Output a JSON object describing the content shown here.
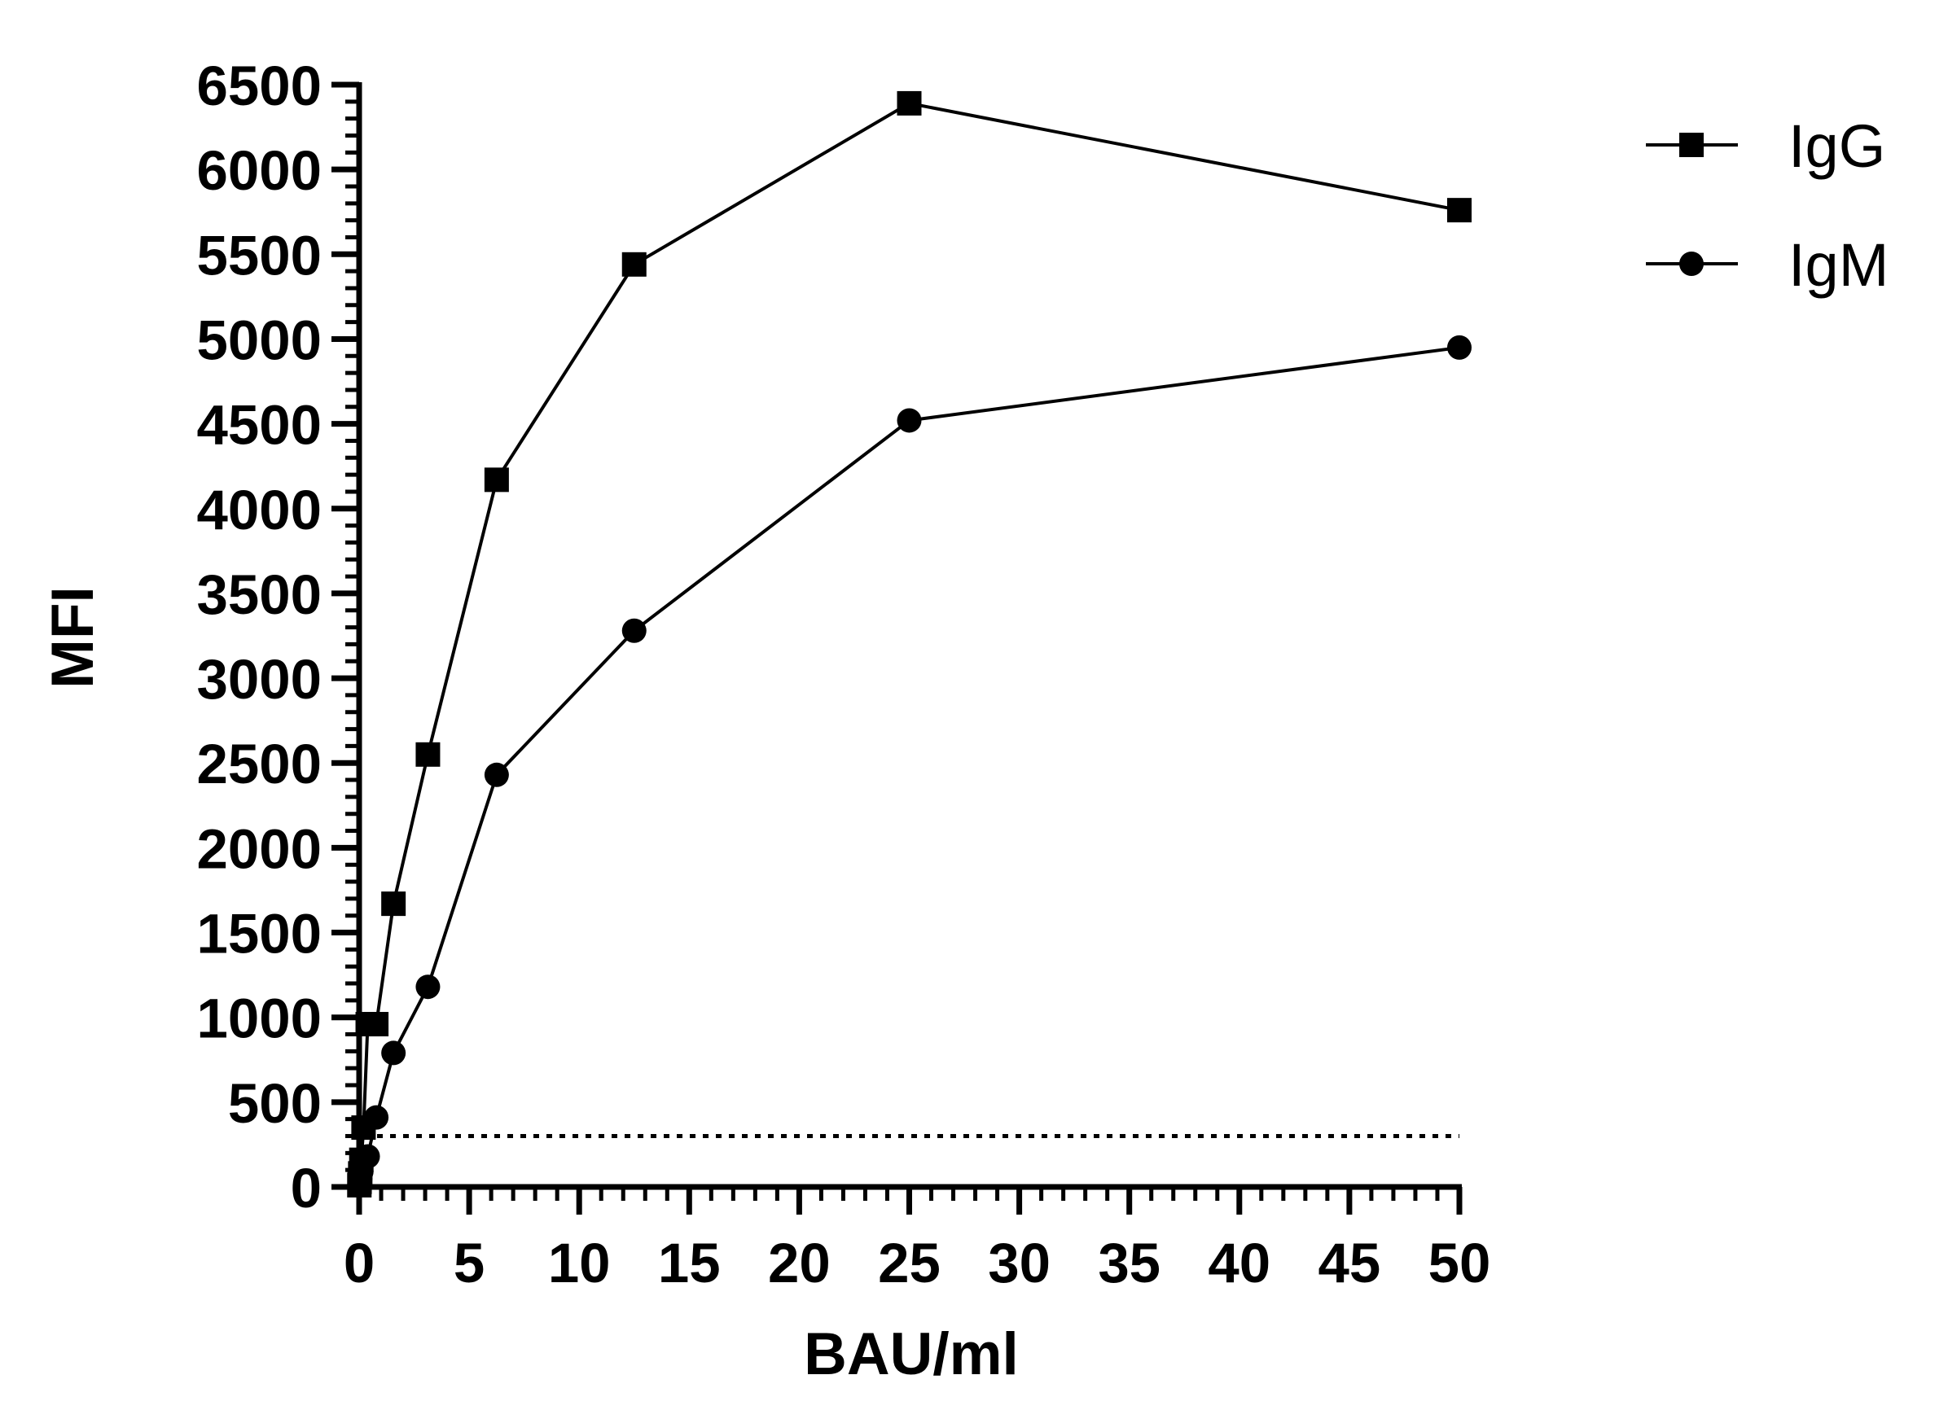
{
  "chart_data": {
    "type": "line",
    "title": "",
    "xlabel": "BAU/ml",
    "ylabel": "MFI",
    "xlim": [
      0,
      50
    ],
    "ylim": [
      0,
      6500
    ],
    "x_ticks": [
      0,
      5,
      10,
      15,
      20,
      25,
      30,
      35,
      40,
      45,
      50
    ],
    "y_ticks": [
      0,
      500,
      1000,
      1500,
      2000,
      2500,
      3000,
      3500,
      4000,
      4500,
      5000,
      5500,
      6000,
      6500
    ],
    "x_minor_step": 1,
    "y_minor_step": 100,
    "grid": false,
    "legend_position": "top-right",
    "series": [
      {
        "name": "IgG",
        "marker": "square",
        "color": "#000000",
        "x": [
          0.01,
          0.02,
          0.05,
          0.1,
          0.2,
          0.39,
          0.78,
          1.56,
          3.125,
          6.25,
          12.5,
          25,
          50
        ],
        "y": [
          10,
          30,
          80,
          160,
          350,
          960,
          960,
          1670,
          2550,
          4170,
          5440,
          6390,
          5760
        ]
      },
      {
        "name": "IgM",
        "marker": "circle",
        "color": "#000000",
        "x": [
          0.01,
          0.02,
          0.05,
          0.1,
          0.2,
          0.39,
          0.78,
          1.56,
          3.125,
          6.25,
          12.5,
          25,
          50
        ],
        "y": [
          10,
          25,
          50,
          90,
          160,
          180,
          410,
          790,
          1180,
          2430,
          3280,
          4520,
          4950
        ]
      }
    ],
    "reference_line": {
      "y": 300,
      "style": "dotted",
      "x_range": [
        0,
        50
      ]
    }
  }
}
